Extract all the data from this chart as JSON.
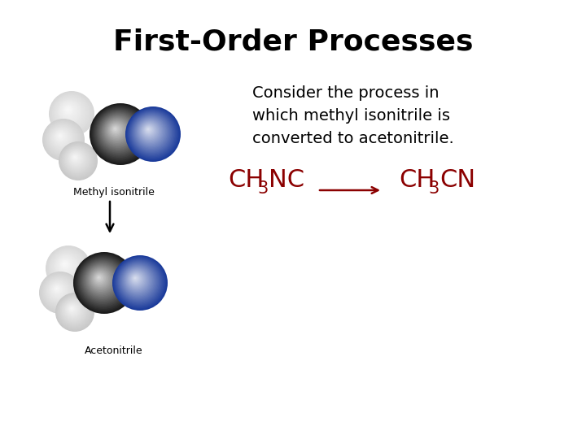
{
  "title": "First-Order Processes",
  "title_fontsize": 26,
  "title_fontweight": "bold",
  "bg_color": "#ffffff",
  "text_color": "#000000",
  "formula_color": "#8b0000",
  "description": "Consider the process in\nwhich methyl isonitrile is\nconverted to acetonitrile.",
  "desc_fontsize": 14,
  "label1": "Methyl isonitrile",
  "label2": "Acetonitrile",
  "label_fontsize": 9,
  "formula_fontsize": 22,
  "sub_fontsize": 15
}
